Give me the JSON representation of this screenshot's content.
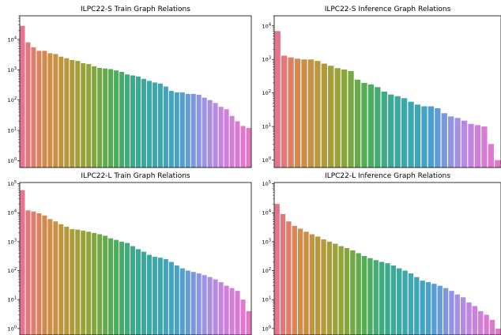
{
  "chart_data": [
    {
      "type": "bar",
      "title": "ILPC22-S Train Graph Relations",
      "yscale": "log",
      "ylim": [
        0.6,
        60000
      ],
      "yticks": [
        {
          "v": 1,
          "label": "10^0"
        },
        {
          "v": 10,
          "label": "10^1"
        },
        {
          "v": 100,
          "label": "10^2"
        },
        {
          "v": 1000,
          "label": "10^3"
        },
        {
          "v": 10000,
          "label": "10^4"
        }
      ],
      "xticklabels_visible": false,
      "values": [
        28000,
        8000,
        5500,
        4200,
        4200,
        3500,
        3300,
        2700,
        2400,
        2100,
        1950,
        1650,
        1550,
        1300,
        1150,
        1100,
        1050,
        950,
        850,
        700,
        650,
        600,
        500,
        430,
        380,
        350,
        280,
        200,
        180,
        180,
        160,
        160,
        150,
        120,
        100,
        80,
        60,
        50,
        30,
        20,
        14,
        12
      ]
    },
    {
      "type": "bar",
      "title": "ILPC22-S Inference Graph Relations",
      "yscale": "log",
      "ylim": [
        0.6,
        20000
      ],
      "yticks": [
        {
          "v": 1,
          "label": "10^0"
        },
        {
          "v": 10,
          "label": "10^1"
        },
        {
          "v": 100,
          "label": "10^2"
        },
        {
          "v": 1000,
          "label": "10^3"
        },
        {
          "v": 10000,
          "label": "10^4"
        }
      ],
      "xticklabels_visible": false,
      "values": [
        7000,
        1300,
        1150,
        1050,
        1000,
        1000,
        900,
        750,
        650,
        550,
        500,
        450,
        250,
        200,
        180,
        150,
        110,
        90,
        80,
        70,
        55,
        45,
        40,
        40,
        35,
        25,
        20,
        18,
        15,
        12,
        11,
        10,
        3,
        1
      ]
    },
    {
      "type": "bar",
      "title": "ILPC22-L Train Graph Relations",
      "yscale": "log",
      "ylim": [
        0.6,
        110000
      ],
      "yticks": [
        {
          "v": 1,
          "label": "10^0"
        },
        {
          "v": 10,
          "label": "10^1"
        },
        {
          "v": 100,
          "label": "10^2"
        },
        {
          "v": 1000,
          "label": "10^3"
        },
        {
          "v": 10000,
          "label": "10^4"
        },
        {
          "v": 100000,
          "label": "10^5"
        }
      ],
      "xticklabels_visible": false,
      "values": [
        60000,
        12000,
        11000,
        9500,
        8000,
        6000,
        5000,
        4000,
        3300,
        2700,
        2600,
        2400,
        2200,
        2000,
        1800,
        1600,
        1300,
        1150,
        1000,
        900,
        700,
        550,
        450,
        350,
        300,
        280,
        250,
        200,
        150,
        120,
        100,
        90,
        80,
        70,
        60,
        50,
        40,
        30,
        25,
        20,
        10,
        4
      ]
    },
    {
      "type": "bar",
      "title": "ILPC22-L Inference Graph Relations",
      "yscale": "log",
      "ylim": [
        0.6,
        110000
      ],
      "yticks": [
        {
          "v": 1,
          "label": "10^0"
        },
        {
          "v": 10,
          "label": "10^1"
        },
        {
          "v": 100,
          "label": "10^2"
        },
        {
          "v": 1000,
          "label": "10^3"
        },
        {
          "v": 10000,
          "label": "10^4"
        },
        {
          "v": 100000,
          "label": "10^5"
        }
      ],
      "xticklabels_visible": false,
      "values": [
        20000,
        9000,
        5000,
        3500,
        2800,
        2200,
        1800,
        1500,
        1200,
        1000,
        850,
        700,
        600,
        500,
        400,
        320,
        270,
        230,
        200,
        180,
        150,
        120,
        100,
        80,
        60,
        45,
        40,
        35,
        30,
        25,
        20,
        15,
        12,
        8,
        6,
        4,
        3,
        2,
        1
      ]
    }
  ]
}
